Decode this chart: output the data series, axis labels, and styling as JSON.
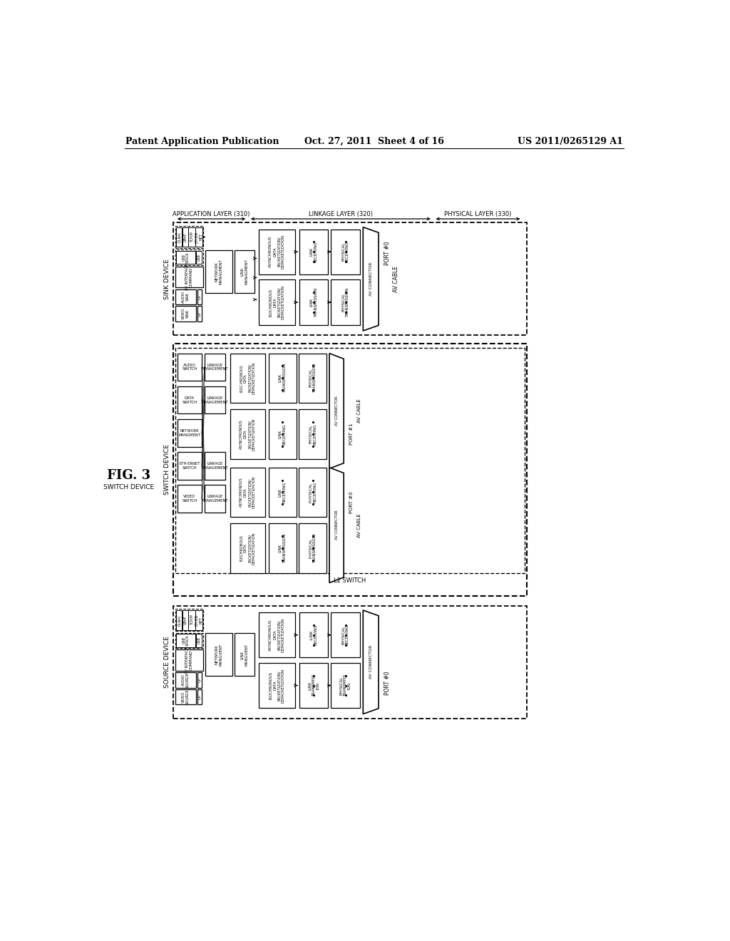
{
  "title_left": "Patent Application Publication",
  "title_mid": "Oct. 27, 2011  Sheet 4 of 16",
  "title_right": "US 2011/0265129 A1",
  "fig_label": "FIG. 3",
  "fig_sublabel": "SWITCH DEVICE",
  "bg_color": "#ffffff"
}
